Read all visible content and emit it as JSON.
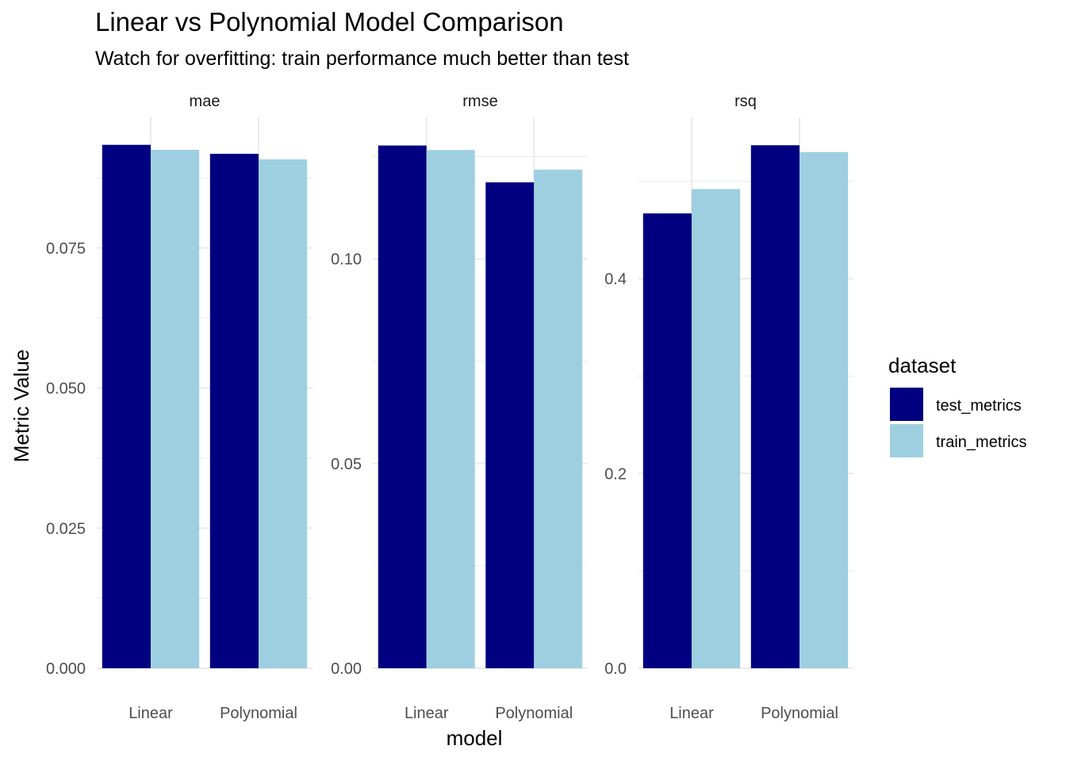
{
  "title": "Linear vs Polynomial Model Comparison",
  "subtitle": "Watch for overfitting: train performance much better than test",
  "chart_data": {
    "type": "bar",
    "title": "Linear vs Polynomial Model Comparison",
    "subtitle": "Watch for overfitting: train performance much better than test",
    "xlabel": "model",
    "ylabel": "Metric Value",
    "legend": {
      "title": "dataset",
      "position": "right",
      "entries": [
        "test_metrics",
        "train_metrics"
      ]
    },
    "colors": {
      "test_metrics": "#000080",
      "train_metrics": "#9ecfe1"
    },
    "grid": true,
    "categories": [
      "Linear",
      "Polynomial"
    ],
    "facets": [
      {
        "name": "mae",
        "ylim": [
          0,
          0.0935
        ],
        "yticks": [
          0.0,
          0.025,
          0.05,
          0.075
        ],
        "ytick_labels": [
          "0.000",
          "0.025",
          "0.050",
          "0.075"
        ],
        "series": [
          {
            "name": "test_metrics",
            "values": [
              0.0934,
              0.0918
            ]
          },
          {
            "name": "train_metrics",
            "values": [
              0.0925,
              0.0908
            ]
          }
        ]
      },
      {
        "name": "rmse",
        "ylim": [
          0,
          0.128
        ],
        "yticks": [
          0.0,
          0.05,
          0.1
        ],
        "ytick_labels": [
          "0.00",
          "0.05",
          "0.10"
        ],
        "series": [
          {
            "name": "test_metrics",
            "values": [
              0.1277,
              0.1187
            ]
          },
          {
            "name": "train_metrics",
            "values": [
              0.1266,
              0.1218
            ]
          }
        ]
      },
      {
        "name": "rsq",
        "ylim": [
          0,
          0.538
        ],
        "yticks": [
          0.0,
          0.2,
          0.4
        ],
        "ytick_labels": [
          "0.0",
          "0.2",
          "0.4"
        ],
        "series": [
          {
            "name": "test_metrics",
            "values": [
              0.467,
              0.537
            ]
          },
          {
            "name": "train_metrics",
            "values": [
              0.492,
              0.53
            ]
          }
        ]
      }
    ]
  }
}
